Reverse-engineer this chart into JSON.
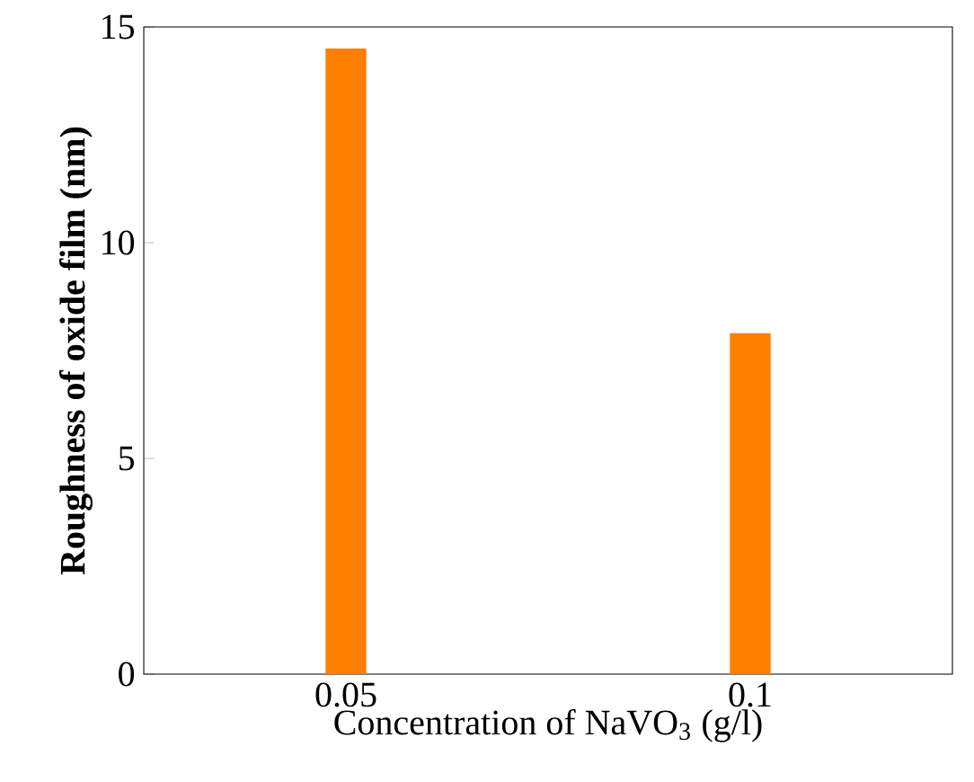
{
  "chart_data": {
    "type": "bar",
    "xlabel": "Concentration of NaVO$_{3}$ (g/l)",
    "ylabel": "**Roughness of oxide film (nm)**",
    "categories": [
      "0.05",
      "0.1"
    ],
    "values": [
      14.5,
      7.9
    ],
    "color": "#ff7f00",
    "ylim": [
      0,
      15
    ],
    "yticks": [
      0,
      5,
      10,
      15
    ]
  }
}
